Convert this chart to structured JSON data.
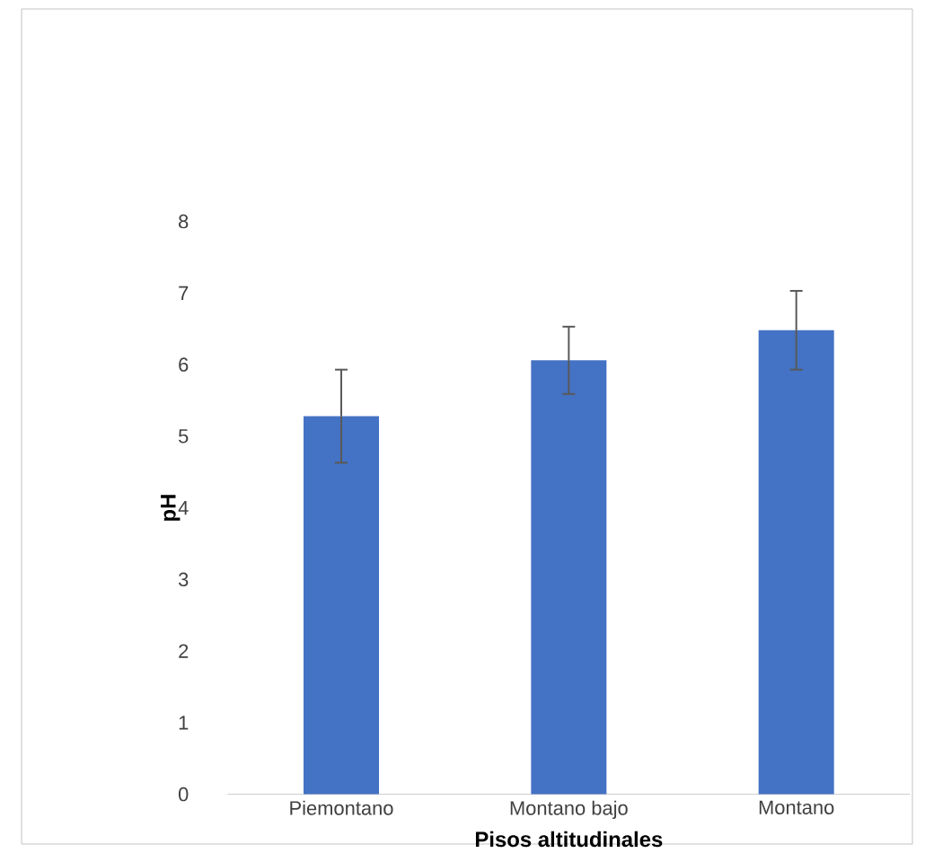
{
  "chart_data": {
    "type": "bar",
    "xlabel": "Pisos altitudinales",
    "ylabel": "pH",
    "categories": [
      "Piemontano",
      "Montano bajo",
      "Montano"
    ],
    "values": [
      5.28,
      6.06,
      6.48
    ],
    "errors": [
      0.65,
      0.47,
      0.55
    ],
    "color": "#4472c4",
    "ylim": [
      0,
      8
    ],
    "yticks": [
      0,
      1,
      2,
      3,
      4,
      5,
      6,
      7,
      8
    ]
  }
}
